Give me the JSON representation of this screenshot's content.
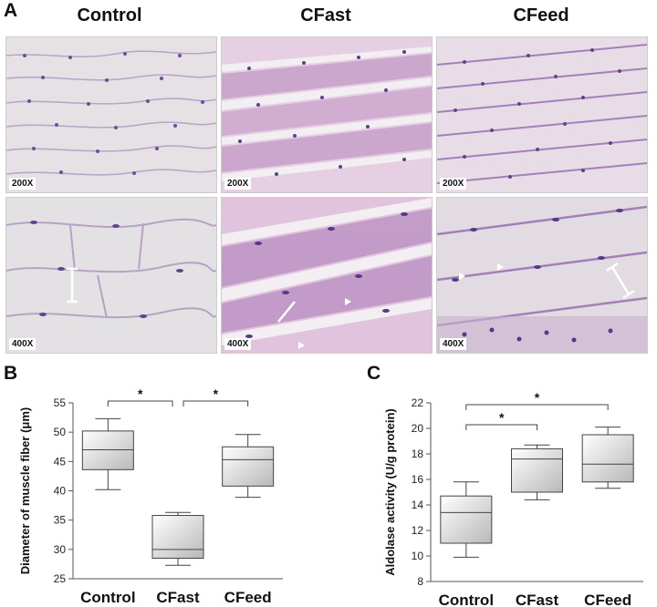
{
  "figure": {
    "panel_a": {
      "letter": "A",
      "columns": [
        "Control",
        "CFast",
        "CFeed"
      ],
      "row_labels": [
        "200X",
        "400X"
      ]
    },
    "panel_b": {
      "letter": "B"
    },
    "panel_c": {
      "letter": "C"
    }
  },
  "chart_data": [
    {
      "type": "box",
      "ylabel": "Diameter of muscle fiber (μm)",
      "categories": [
        "Control",
        "CFast",
        "CFeed"
      ],
      "ylim": [
        25,
        55
      ],
      "yticks": [
        25,
        30,
        35,
        40,
        45,
        50,
        55
      ],
      "boxes": [
        {
          "whisker_low": 40.2,
          "q1": 43.6,
          "median": 47.0,
          "q3": 50.2,
          "whisker_high": 52.3
        },
        {
          "whisker_low": 27.3,
          "q1": 28.5,
          "median": 30.0,
          "q3": 35.8,
          "whisker_high": 36.3
        },
        {
          "whisker_low": 38.9,
          "q1": 40.8,
          "median": 45.3,
          "q3": 47.5,
          "whisker_high": 49.6
        }
      ],
      "significance": [
        {
          "from": 0,
          "to": 1,
          "label": "*"
        },
        {
          "from": 1,
          "to": 2,
          "label": "*"
        }
      ]
    },
    {
      "type": "box",
      "ylabel": "Aldolase activity (U/g protein)",
      "categories": [
        "Control",
        "CFast",
        "CFeed"
      ],
      "ylim": [
        8,
        22
      ],
      "yticks": [
        8,
        10,
        12,
        14,
        16,
        18,
        20,
        22
      ],
      "boxes": [
        {
          "whisker_low": 9.9,
          "q1": 11.0,
          "median": 13.4,
          "q3": 14.7,
          "whisker_high": 15.8
        },
        {
          "whisker_low": 14.4,
          "q1": 15.0,
          "median": 17.6,
          "q3": 18.4,
          "whisker_high": 18.7
        },
        {
          "whisker_low": 15.3,
          "q1": 15.8,
          "median": 17.2,
          "q3": 19.5,
          "whisker_high": 20.1
        }
      ],
      "significance": [
        {
          "from": 0,
          "to": 1,
          "label": "*"
        },
        {
          "from": 0,
          "to": 2,
          "label": "*"
        }
      ]
    }
  ]
}
